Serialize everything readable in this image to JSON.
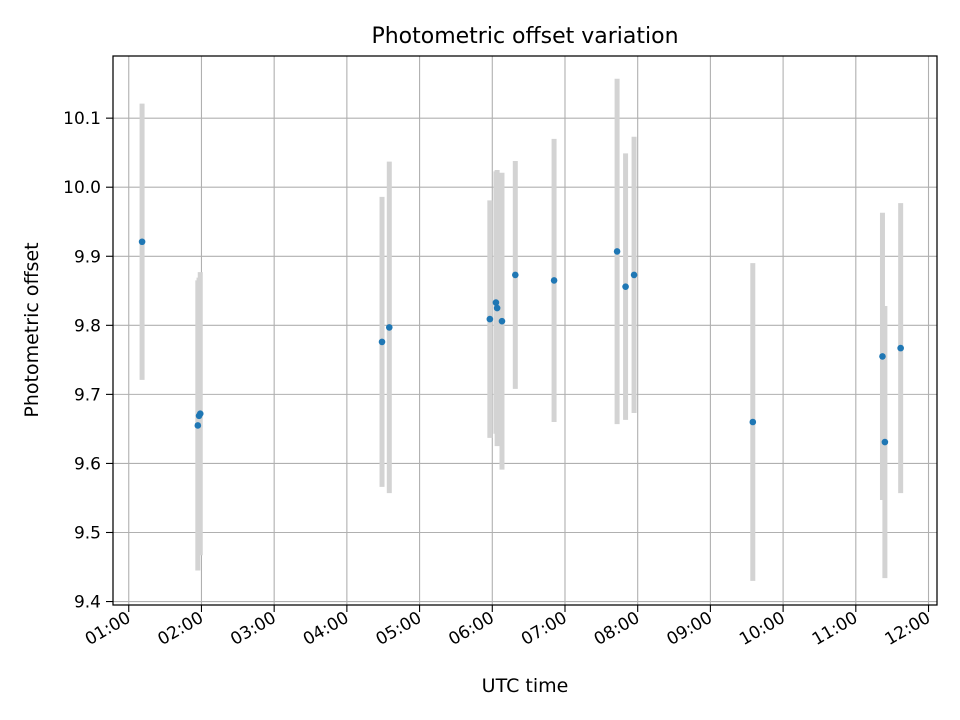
{
  "chart_data": {
    "type": "scatter",
    "title": "Photometric offset variation",
    "xlabel": "UTC time",
    "ylabel": "Photometric offset",
    "x_axis_format": "HH:MM",
    "xlim": [
      "00:47",
      "12:07"
    ],
    "ylim": [
      9.395,
      10.19
    ],
    "x_ticks": [
      "01:00",
      "02:00",
      "03:00",
      "04:00",
      "05:00",
      "06:00",
      "07:00",
      "08:00",
      "09:00",
      "10:00",
      "11:00",
      "12:00"
    ],
    "y_ticks": [
      9.4,
      9.5,
      9.6,
      9.7,
      9.8,
      9.9,
      10.0,
      10.1
    ],
    "y_tick_labels": [
      "9.4",
      "9.5",
      "9.6",
      "9.7",
      "9.8",
      "9.9",
      "10.0",
      "10.1"
    ],
    "grid": true,
    "legend": "none",
    "series": [
      {
        "marker_color": "#1f77b4",
        "errorbar_color": "#d3d3d3",
        "points": [
          {
            "x": "01:11",
            "y": 9.921,
            "yerr": 0.2
          },
          {
            "x": "01:57",
            "y": 9.655,
            "yerr": 0.21
          },
          {
            "x": "01:58",
            "y": 9.669,
            "yerr": 0.2
          },
          {
            "x": "01:59",
            "y": 9.672,
            "yerr": 0.205
          },
          {
            "x": "04:29",
            "y": 9.776,
            "yerr": 0.21
          },
          {
            "x": "04:35",
            "y": 9.797,
            "yerr": 0.24
          },
          {
            "x": "05:58",
            "y": 9.809,
            "yerr": 0.172
          },
          {
            "x": "06:03",
            "y": 9.833,
            "yerr": 0.19
          },
          {
            "x": "06:04",
            "y": 9.825,
            "yerr": 0.2
          },
          {
            "x": "06:08",
            "y": 9.806,
            "yerr": 0.215
          },
          {
            "x": "06:19",
            "y": 9.873,
            "yerr": 0.165
          },
          {
            "x": "06:51",
            "y": 9.865,
            "yerr": 0.205
          },
          {
            "x": "07:43",
            "y": 9.907,
            "yerr": 0.25
          },
          {
            "x": "07:50",
            "y": 9.856,
            "yerr": 0.193
          },
          {
            "x": "07:57",
            "y": 9.873,
            "yerr": 0.2
          },
          {
            "x": "09:35",
            "y": 9.66,
            "yerr": 0.23
          },
          {
            "x": "11:22",
            "y": 9.755,
            "yerr": 0.208
          },
          {
            "x": "11:24",
            "y": 9.631,
            "yerr": 0.197
          },
          {
            "x": "11:37",
            "y": 9.767,
            "yerr": 0.21
          }
        ]
      }
    ]
  }
}
